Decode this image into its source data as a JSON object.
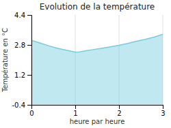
{
  "chart_data": {
    "type": "area",
    "title": "Evolution de la température",
    "xlabel": "heure par heure",
    "ylabel": "Température en °C",
    "x": [
      0,
      0.2,
      0.4,
      0.6,
      0.8,
      1.0,
      1.1,
      1.2,
      1.4,
      1.6,
      1.8,
      2.0,
      2.2,
      2.4,
      2.6,
      2.8,
      3.0
    ],
    "values": [
      3.05,
      2.9,
      2.75,
      2.62,
      2.52,
      2.42,
      2.43,
      2.47,
      2.55,
      2.62,
      2.7,
      2.78,
      2.88,
      3.0,
      3.1,
      3.22,
      3.37
    ],
    "xlim": [
      0,
      3
    ],
    "ylim": [
      -0.4,
      4.4
    ],
    "xticks": [
      0,
      1,
      2,
      3
    ],
    "yticks": [
      -0.4,
      1.2,
      2.8,
      4.4
    ],
    "color": "#74cce0",
    "grid": "x"
  }
}
